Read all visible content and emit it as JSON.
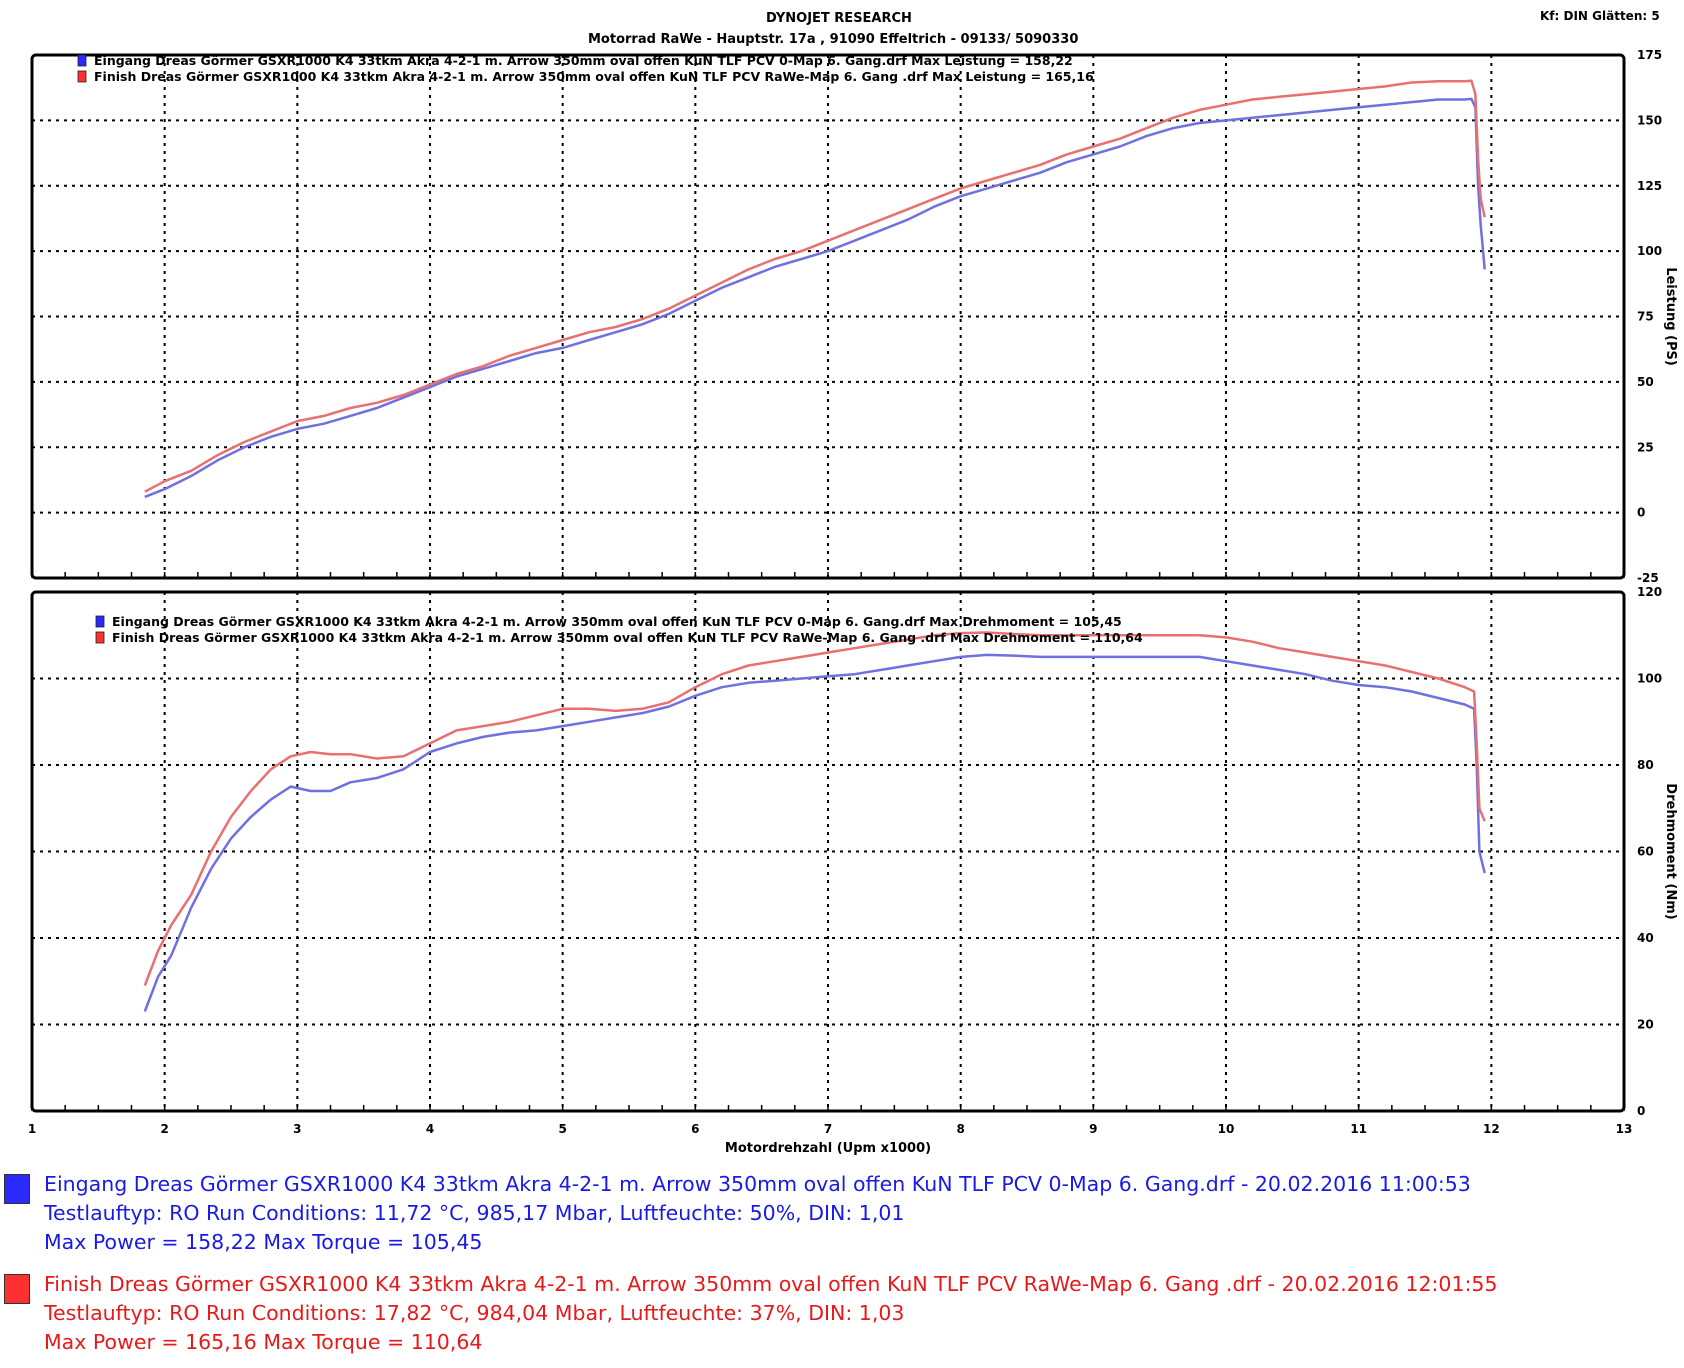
{
  "header": {
    "title": "DYNOJET RESEARCH",
    "subtitle": "Motorrad RaWe  - Hauptstr. 17a , 91090 Effeltrich - 09133/ 5090330",
    "settings": "Kf: DIN  Glätten: 5"
  },
  "colors": {
    "run1": "#7070e0",
    "run2": "#e87070",
    "run1_text": "#1a1ae6",
    "run2_text": "#e61a1a",
    "run1_swatch": "#2a2aff",
    "run2_swatch": "#ff3030"
  },
  "xaxis": {
    "label": "Motordrehzahl (Upm x1000)",
    "min": 1,
    "max": 13,
    "ticks": [
      "1",
      "2",
      "3",
      "4",
      "5",
      "6",
      "7",
      "8",
      "9",
      "10",
      "11",
      "12",
      "13"
    ]
  },
  "chart_data": [
    {
      "type": "line",
      "name": "power",
      "ylabel": "Leistung (PS)",
      "ylim": [
        -25,
        175
      ],
      "yticks": [
        "-25",
        "0",
        "25",
        "50",
        "75",
        "100",
        "125",
        "150",
        "175"
      ],
      "grid": true,
      "legend": [
        "Eingang Dreas Görmer  GSXR1000 K4 33tkm Akra 4-2-1 m. Arrow 350mm oval offen KuN TLF PCV 0-Map 6. Gang.drf Max Leistung = 158,22",
        "Finish Dreas Görmer  GSXR1000 K4 33tkm Akra 4-2-1 m. Arrow 350mm oval offen KuN TLF PCV RaWe-Map 6. Gang .drf Max Leistung = 165,16"
      ],
      "x": [
        1.85,
        2.0,
        2.2,
        2.4,
        2.6,
        2.8,
        3.0,
        3.2,
        3.4,
        3.6,
        3.8,
        4.0,
        4.2,
        4.4,
        4.6,
        4.8,
        5.0,
        5.2,
        5.4,
        5.6,
        5.8,
        6.0,
        6.2,
        6.4,
        6.6,
        6.8,
        7.0,
        7.2,
        7.4,
        7.6,
        7.8,
        8.0,
        8.2,
        8.4,
        8.6,
        8.8,
        9.0,
        9.2,
        9.4,
        9.6,
        9.8,
        10.0,
        10.2,
        10.4,
        10.6,
        10.8,
        11.0,
        11.2,
        11.4,
        11.6,
        11.8,
        11.85,
        11.88,
        11.9,
        11.92,
        11.95
      ],
      "series": [
        {
          "name": "Eingang",
          "values": [
            6,
            9,
            14,
            20,
            25,
            29,
            32,
            34,
            37,
            40,
            44,
            48,
            52,
            55,
            58,
            61,
            63,
            66,
            69,
            72,
            76,
            81,
            86,
            90,
            94,
            97,
            100,
            104,
            108,
            112,
            117,
            121,
            124,
            127,
            130,
            134,
            137,
            140,
            144,
            147,
            149,
            150,
            151,
            152,
            153,
            154,
            155,
            156,
            157,
            158,
            158,
            158.2,
            155,
            125,
            110,
            93
          ]
        },
        {
          "name": "Finish",
          "values": [
            8,
            12,
            16,
            22,
            27,
            31,
            35,
            37,
            40,
            42,
            45,
            49,
            53,
            56,
            60,
            63,
            66,
            69,
            71,
            74,
            78,
            83,
            88,
            93,
            97,
            100,
            104,
            108,
            112,
            116,
            120,
            124,
            127,
            130,
            133,
            137,
            140,
            143,
            147,
            151,
            154,
            156,
            158,
            159,
            160,
            161,
            162,
            163,
            164.5,
            165,
            165,
            165.16,
            160,
            135,
            120,
            113
          ]
        }
      ]
    },
    {
      "type": "line",
      "name": "torque",
      "ylabel": "Drehmoment (Nm)",
      "ylim": [
        0,
        120
      ],
      "yticks": [
        "0",
        "20",
        "40",
        "60",
        "80",
        "100",
        "120"
      ],
      "grid": true,
      "legend": [
        "Eingang Dreas Görmer  GSXR1000 K4 33tkm Akra 4-2-1 m. Arrow 350mm oval offen KuN TLF PCV 0-Map 6. Gang.drf Max Drehmoment = 105,45",
        "Finish Dreas Görmer  GSXR1000 K4 33tkm Akra 4-2-1 m. Arrow 350mm oval offen KuN TLF PCV RaWe-Map 6. Gang .drf Max Drehmoment = 110,64"
      ],
      "x": [
        1.85,
        1.95,
        2.05,
        2.2,
        2.35,
        2.5,
        2.65,
        2.8,
        2.95,
        3.1,
        3.25,
        3.4,
        3.6,
        3.8,
        4.0,
        4.2,
        4.4,
        4.6,
        4.8,
        5.0,
        5.2,
        5.4,
        5.6,
        5.8,
        6.0,
        6.2,
        6.4,
        6.6,
        6.8,
        7.0,
        7.2,
        7.4,
        7.6,
        7.8,
        8.0,
        8.2,
        8.4,
        8.6,
        8.8,
        9.0,
        9.2,
        9.4,
        9.6,
        9.8,
        10.0,
        10.2,
        10.4,
        10.6,
        10.8,
        11.0,
        11.2,
        11.4,
        11.6,
        11.8,
        11.87,
        11.89,
        11.91,
        11.95
      ],
      "series": [
        {
          "name": "Eingang",
          "values": [
            23,
            31,
            36,
            47,
            56,
            63,
            68,
            72,
            75,
            74,
            74,
            76,
            77,
            79,
            83,
            85,
            86.5,
            87.5,
            88,
            89,
            90,
            91,
            92,
            93.5,
            96,
            98,
            99,
            99.5,
            100,
            100.5,
            101,
            102,
            103,
            104,
            105,
            105.45,
            105.3,
            105,
            105,
            105,
            105,
            105,
            105,
            105,
            104,
            103,
            102,
            101,
            99.5,
            98.5,
            98,
            97,
            95.5,
            94,
            93,
            80,
            60,
            55
          ]
        },
        {
          "name": "Finish",
          "values": [
            29,
            37,
            43,
            50,
            60,
            68,
            74,
            79,
            82,
            83,
            82.5,
            82.5,
            81.5,
            82,
            85,
            88,
            89,
            90,
            91.5,
            93,
            93,
            92.5,
            93,
            94.5,
            98,
            101,
            103,
            104,
            105,
            106,
            107,
            108,
            109,
            110,
            110.5,
            110.64,
            110.3,
            110,
            110,
            110,
            110,
            110,
            110,
            110,
            109.5,
            108.5,
            107,
            106,
            105,
            104,
            103,
            101.5,
            100,
            98,
            97,
            85,
            70,
            67
          ]
        }
      ]
    }
  ],
  "footer": {
    "runs": [
      {
        "line1": "Eingang Dreas Görmer  GSXR1000 K4 33tkm Akra 4-2-1 m. Arrow 350mm oval offen KuN TLF PCV 0-Map 6. Gang.drf - 20.02.2016 11:00:53",
        "line2": "Testlauftyp: RO  Run Conditions: 11,72 °C, 985,17 Mbar,  Luftfeuchte: 50%, DIN: 1,01",
        "line3": "Max Power = 158,22  Max Torque = 105,45"
      },
      {
        "line1": "Finish Dreas Görmer  GSXR1000 K4 33tkm Akra 4-2-1 m. Arrow 350mm oval offen KuN TLF PCV RaWe-Map 6. Gang .drf - 20.02.2016 12:01:55",
        "line2": "Testlauftyp: RO  Run Conditions: 17,82 °C, 984,04 Mbar,  Luftfeuchte: 37%, DIN: 1,03",
        "line3": "Max Power = 165,16  Max Torque = 110,64"
      }
    ]
  }
}
